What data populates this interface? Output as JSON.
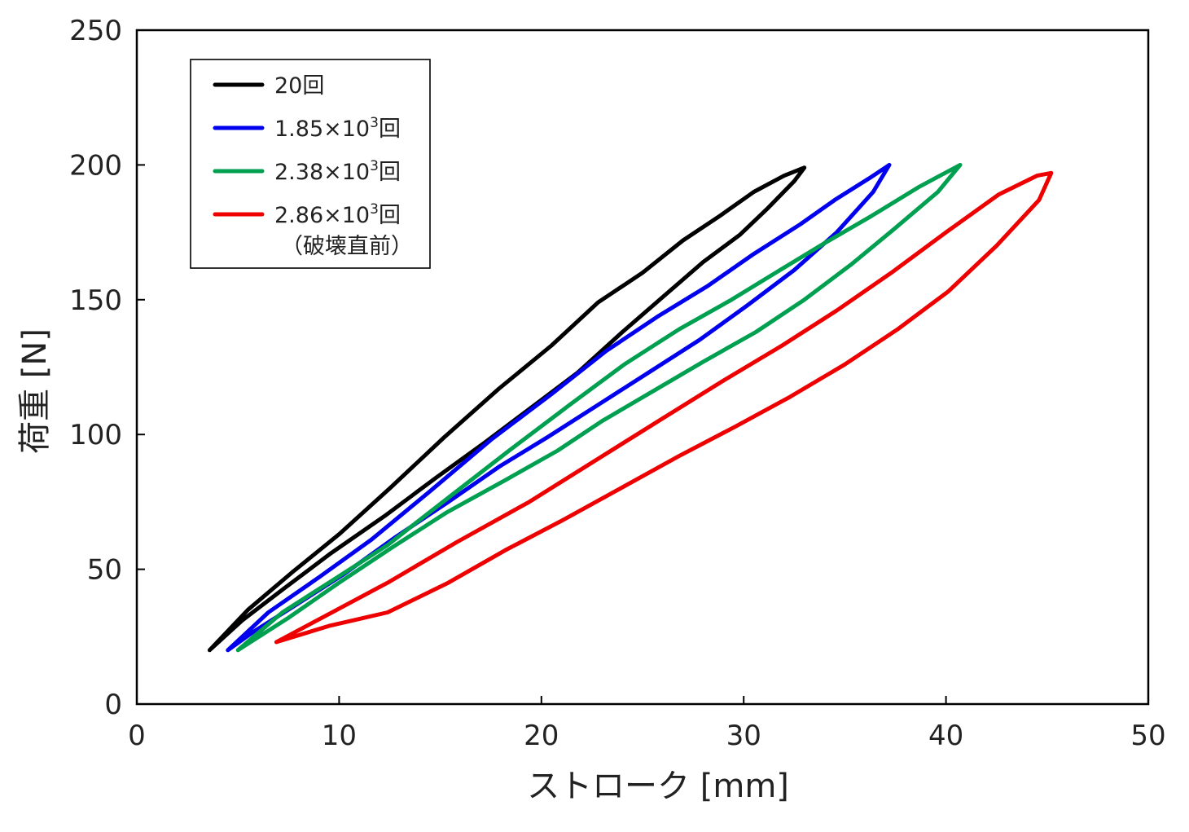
{
  "chart_data": {
    "type": "line",
    "title": "",
    "xlabel": "ストローク [mm]",
    "ylabel": "荷重 [N]",
    "xlim": [
      0,
      50
    ],
    "ylim": [
      0,
      250
    ],
    "xticks": [
      "0",
      "10",
      "20",
      "30",
      "40",
      "50"
    ],
    "yticks": [
      "0",
      "50",
      "100",
      "150",
      "200",
      "250"
    ],
    "grid": false,
    "legend_position": "top-left",
    "series": [
      {
        "name": "20回",
        "name_parts": {
          "base": "20",
          "sup": "",
          "unit": "回",
          "note": ""
        },
        "color": "#000000",
        "x": [
          3.6,
          5.5,
          7.7,
          10.0,
          12.5,
          15.2,
          17.9,
          20.5,
          22.8,
          25.0,
          27.0,
          28.8,
          30.5,
          32.0,
          33.0,
          32.5,
          31.2,
          29.8,
          28.0,
          26.0,
          24.0,
          21.8,
          19.5,
          17.2,
          14.8,
          12.3,
          9.6,
          7.3,
          5.2,
          3.6
        ],
        "y": [
          20,
          35,
          49,
          63,
          80,
          99,
          117,
          133,
          149,
          160,
          172,
          181,
          190,
          196,
          199,
          194,
          184,
          174,
          164,
          151,
          138,
          123,
          110,
          97,
          84,
          70,
          56,
          43,
          31,
          20
        ]
      },
      {
        "name": "1.85×10³回",
        "name_parts": {
          "base": "1.85×10",
          "sup": "3",
          "unit": "回",
          "note": ""
        },
        "color": "#0000ee",
        "x": [
          4.5,
          6.5,
          9.0,
          11.6,
          14.5,
          17.5,
          20.5,
          23.2,
          25.8,
          28.2,
          30.5,
          32.8,
          34.5,
          36.2,
          37.2,
          36.4,
          34.6,
          32.5,
          30.2,
          27.8,
          25.3,
          22.8,
          20.3,
          17.9,
          15.4,
          12.8,
          10.2,
          7.7,
          5.8,
          4.5
        ],
        "y": [
          20,
          34,
          47,
          61,
          79,
          98,
          115,
          131,
          144,
          155,
          167,
          178,
          187,
          195,
          200,
          190,
          175,
          161,
          148,
          135,
          123,
          111,
          99,
          88,
          75,
          62,
          48,
          36,
          27,
          20
        ]
      },
      {
        "name": "2.38×10³回",
        "name_parts": {
          "base": "2.38×10",
          "sup": "3",
          "unit": "回",
          "note": ""
        },
        "color": "#00a050",
        "x": [
          5.0,
          7.2,
          9.7,
          12.4,
          15.3,
          18.4,
          21.4,
          24.1,
          26.8,
          29.4,
          31.8,
          34.0,
          36.3,
          38.7,
          40.7,
          39.6,
          37.4,
          35.3,
          33.0,
          30.6,
          28.0,
          25.5,
          23.0,
          20.8,
          18.2,
          15.3,
          12.6,
          10.0,
          7.5,
          5.0
        ],
        "y": [
          20,
          34,
          46,
          59,
          76,
          94,
          111,
          126,
          139,
          150,
          161,
          171,
          181,
          192,
          200,
          190,
          176,
          163,
          150,
          138,
          127,
          116,
          105,
          94,
          83,
          71,
          58,
          45,
          32,
          20
        ]
      },
      {
        "name": "2.86×10³回（破壊直前）",
        "name_parts": {
          "base": "2.86×10",
          "sup": "3",
          "unit": "回",
          "note": "（破壊直前）"
        },
        "color": "#ee0000",
        "x": [
          6.9,
          9.4,
          12.4,
          15.8,
          19.4,
          22.8,
          26.0,
          29.0,
          31.9,
          34.6,
          37.3,
          40.0,
          42.6,
          44.5,
          45.2,
          44.6,
          42.5,
          40.1,
          37.6,
          35.0,
          32.3,
          29.6,
          26.8,
          23.9,
          21.0,
          18.2,
          15.4,
          12.4,
          9.5,
          6.9
        ],
        "y": [
          23,
          33,
          45,
          60,
          75,
          91,
          106,
          120,
          133,
          146,
          160,
          175,
          189,
          196,
          197,
          187,
          170,
          153,
          139,
          126,
          114,
          103,
          92,
          80,
          68,
          57,
          45,
          34,
          29,
          23
        ]
      }
    ]
  }
}
